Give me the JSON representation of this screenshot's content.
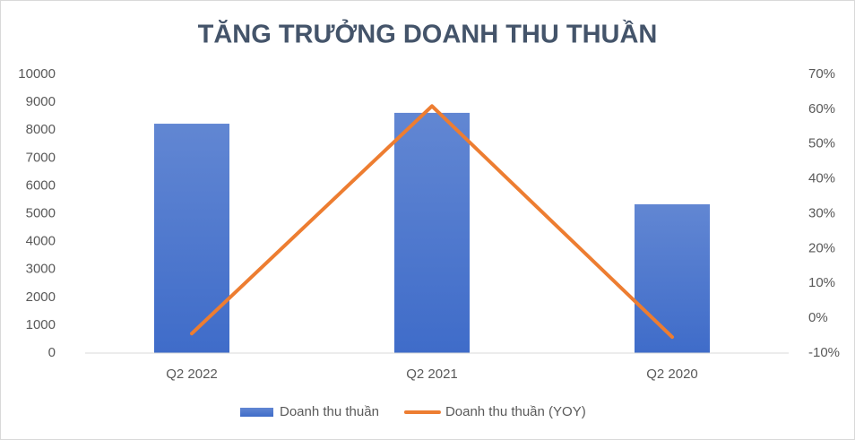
{
  "chart_data": {
    "type": "bar",
    "title": "TĂNG TRƯỞNG DOANH THU THUẦN",
    "categories": [
      "Q2 2022",
      "Q2 2021",
      "Q2 2020"
    ],
    "series": [
      {
        "name": "Doanh thu thuần",
        "type": "bar",
        "color": "#3f6cc9",
        "values": [
          8230,
          8620,
          5340
        ]
      },
      {
        "name": "Doanh thu thuần (YOY)",
        "type": "line",
        "axis": "y2",
        "color": "#ed7d31",
        "values": [
          -4.4,
          60.9,
          -5.4
        ]
      }
    ],
    "ylim": [
      0,
      10000
    ],
    "yticks": [
      0,
      1000,
      2000,
      3000,
      4000,
      5000,
      6000,
      7000,
      8000,
      9000,
      10000
    ],
    "y2lim": [
      -10,
      70
    ],
    "y2ticks": [
      {
        "value": -10,
        "label": "-10%"
      },
      {
        "value": 0,
        "label": "0%"
      },
      {
        "value": 10,
        "label": "10%"
      },
      {
        "value": 20,
        "label": "20%"
      },
      {
        "value": 30,
        "label": "30%"
      },
      {
        "value": 40,
        "label": "40%"
      },
      {
        "value": 50,
        "label": "50%"
      },
      {
        "value": 60,
        "label": "60%"
      },
      {
        "value": 70,
        "label": "70%"
      }
    ],
    "grid": false,
    "legend": "bottom"
  }
}
